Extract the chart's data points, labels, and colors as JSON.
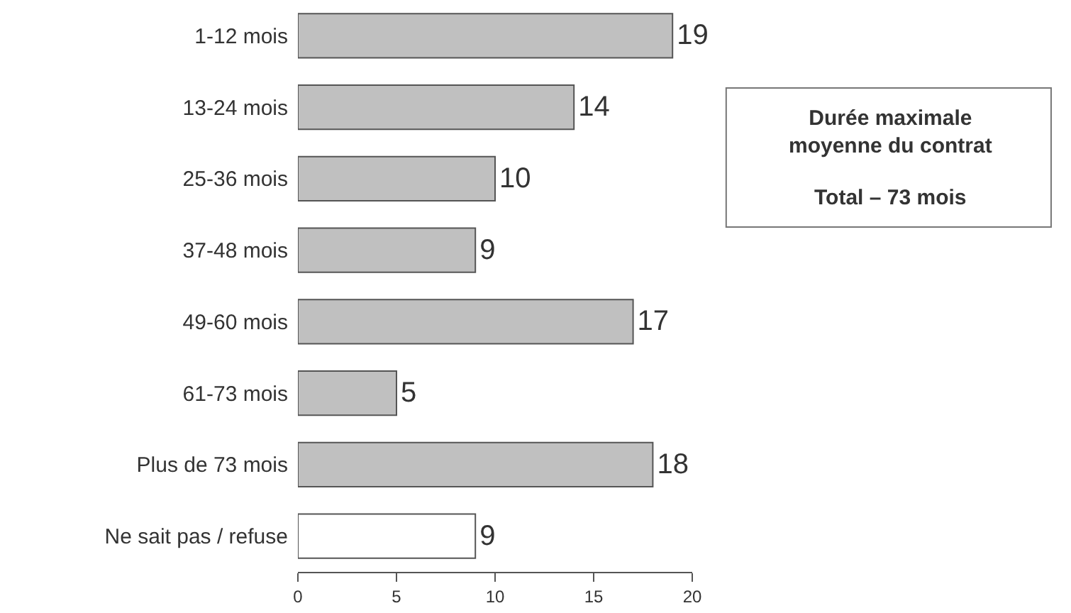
{
  "chart_data": {
    "type": "bar",
    "orientation": "horizontal",
    "categories": [
      "1-12 mois",
      "13-24 mois",
      "25-36 mois",
      "37-48 mois",
      "49-60 mois",
      "61-73 mois",
      "Plus de 73 mois",
      "Ne sait pas / refuse"
    ],
    "values": [
      19,
      14,
      10,
      9,
      17,
      5,
      18,
      9
    ],
    "colors": [
      "#c0c0c0",
      "#c0c0c0",
      "#c0c0c0",
      "#c0c0c0",
      "#c0c0c0",
      "#c0c0c0",
      "#c0c0c0",
      "#ffffff"
    ],
    "xlim": [
      0,
      20
    ],
    "xticks": [
      0,
      5,
      10,
      15,
      20
    ],
    "data_labels": true,
    "annotations": [
      "Durée maximale moyenne du contrat",
      "Total – 73 mois"
    ]
  }
}
